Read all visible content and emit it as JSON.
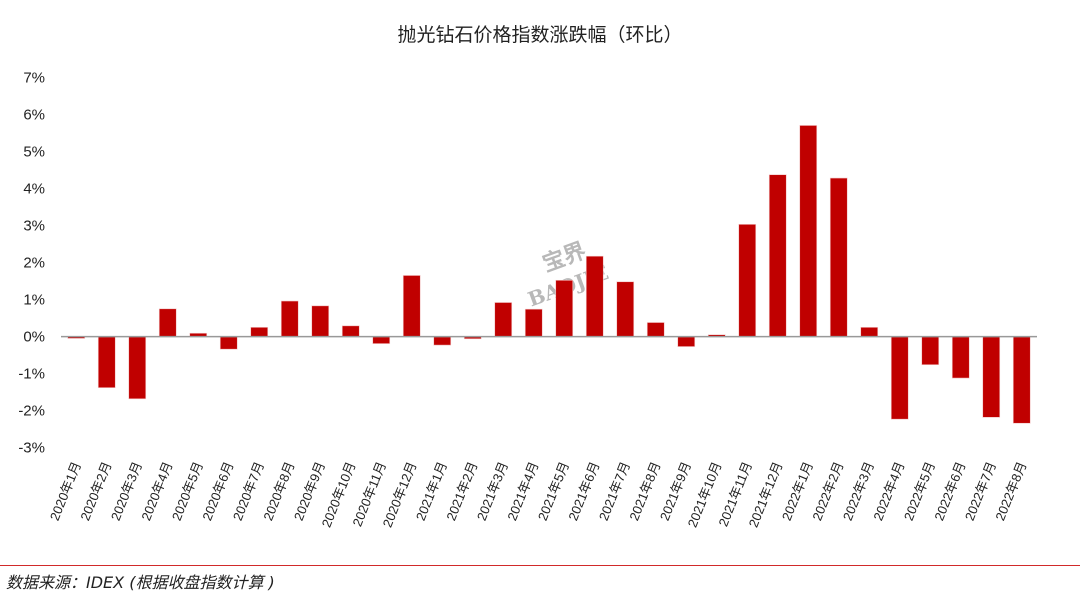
{
  "chart_data": {
    "type": "bar",
    "title": "抛光钻石价格指数涨跌幅（环比）",
    "xlabel": "",
    "ylabel": "",
    "ylim": [
      -3,
      7
    ],
    "yticks": [
      "-3%",
      "-2%",
      "-1%",
      "0%",
      "1%",
      "2%",
      "3%",
      "4%",
      "5%",
      "6%",
      "7%"
    ],
    "grid": false,
    "bar_color": "#c00000",
    "categories": [
      "2020年1月",
      "2020年2月",
      "2020年3月",
      "2020年4月",
      "2020年5月",
      "2020年6月",
      "2020年7月",
      "2020年8月",
      "2020年9月",
      "2020年10月",
      "2020年11月",
      "2020年12月",
      "2021年1月",
      "2021年2月",
      "2021年3月",
      "2021年4月",
      "2021年5月",
      "2021年6月",
      "2021年7月",
      "2021年8月",
      "2021年9月",
      "2021年10月",
      "2021年11月",
      "2021年12月",
      "2022年1月",
      "2022年2月",
      "2022年3月",
      "2022年4月",
      "2022年5月",
      "2022年6月",
      "2022年7月",
      "2022年8月"
    ],
    "values": [
      -0.05,
      -1.38,
      -1.68,
      0.75,
      0.09,
      -0.34,
      0.25,
      0.96,
      0.83,
      0.29,
      -0.19,
      1.65,
      -0.23,
      -0.06,
      0.92,
      0.74,
      1.52,
      2.17,
      1.48,
      0.38,
      -0.27,
      0.05,
      3.03,
      4.37,
      5.7,
      4.28,
      0.25,
      -2.23,
      -0.76,
      -1.12,
      -2.18,
      -2.34
    ]
  },
  "watermark": {
    "cn": "宝界",
    "en": "BAOJIE"
  },
  "source": "数据来源：IDEX (根据收盘指数计算 )"
}
